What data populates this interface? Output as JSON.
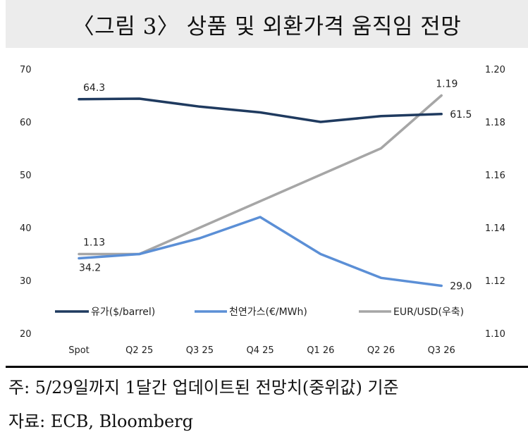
{
  "title": "〈그림 3〉 상품 및 외환가격 움직임 전망",
  "footnote": "주: 5/29일까지 1달간 업데이트된 전망치(중위값) 기준",
  "source": "자료: ECB, Bloomberg",
  "chart_data": {
    "type": "line",
    "categories": [
      "Spot",
      "Q2 25",
      "Q3 25",
      "Q4 25",
      "Q1 26",
      "Q2 26",
      "Q3 26"
    ],
    "y_left": {
      "ticks": [
        20,
        30,
        40,
        50,
        60,
        70
      ],
      "ylim": [
        20,
        70
      ]
    },
    "y_right": {
      "ticks": [
        "1.10",
        "1.12",
        "1.14",
        "1.16",
        "1.18",
        "1.20"
      ],
      "ylim": [
        1.1,
        1.2
      ]
    },
    "series": [
      {
        "name": "유가($/barrel)",
        "axis": "left",
        "color": "#1f3a5f",
        "values": [
          64.3,
          64.4,
          62.9,
          61.8,
          60.0,
          61.1,
          61.5
        ]
      },
      {
        "name": "천연가스(€/MWh)",
        "axis": "left",
        "color": "#5b8fd6",
        "values": [
          34.2,
          35.0,
          38.0,
          42.0,
          35.0,
          30.5,
          29.0
        ]
      },
      {
        "name": "EUR/USD(우축)",
        "axis": "right",
        "color": "#a6a6a6",
        "values": [
          1.13,
          1.13,
          1.14,
          1.15,
          1.16,
          1.17,
          1.19
        ]
      }
    ],
    "data_labels": [
      {
        "text": "64.3",
        "series": 0,
        "index": 0,
        "pos": "above"
      },
      {
        "text": "61.5",
        "series": 0,
        "index": 6,
        "pos": "right"
      },
      {
        "text": "34.2",
        "series": 1,
        "index": 0,
        "pos": "below"
      },
      {
        "text": "29.0",
        "series": 1,
        "index": 6,
        "pos": "right"
      },
      {
        "text": "1.13",
        "series": 2,
        "index": 0,
        "pos": "above"
      },
      {
        "text": "1.19",
        "series": 2,
        "index": 6,
        "pos": "above"
      }
    ],
    "legend_position": "bottom-inside",
    "grid": false
  }
}
